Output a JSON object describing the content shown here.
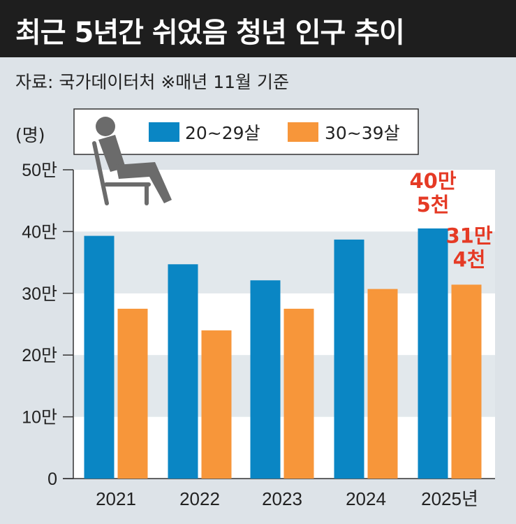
{
  "title": "최근 5년간 쉬었음 청년 인구 추이",
  "source": "자료: 국가데이터처  ※매년 11월 기준",
  "unit": "(명)",
  "colors": {
    "series1": "#0a86c4",
    "series2": "#f7963a",
    "annotation": "#e53a25",
    "band_light": "#ffffff",
    "band_dark": "#e2e8ec",
    "title_bg": "#1e1e1e"
  },
  "icon": "person-sitting-in-chair-icon",
  "chart_data": {
    "type": "bar",
    "categories": [
      "2021",
      "2022",
      "2023",
      "2024",
      "2025년"
    ],
    "series": [
      {
        "name": "20~29살",
        "values": [
          393000,
          347000,
          321000,
          387000,
          405000
        ]
      },
      {
        "name": "30~39살",
        "values": [
          275000,
          240000,
          275000,
          307000,
          314000
        ]
      }
    ],
    "ylim": [
      0,
      500000
    ],
    "yticks": [
      0,
      100000,
      200000,
      300000,
      400000,
      500000
    ],
    "ytick_labels": [
      "0",
      "10만",
      "20만",
      "30만",
      "40만",
      "50만"
    ],
    "legend_position": "top-right",
    "annotations": [
      {
        "series": 0,
        "category": 4,
        "lines": [
          "40만",
          "5천"
        ]
      },
      {
        "series": 1,
        "category": 4,
        "lines": [
          "31만",
          "4천"
        ]
      }
    ]
  }
}
